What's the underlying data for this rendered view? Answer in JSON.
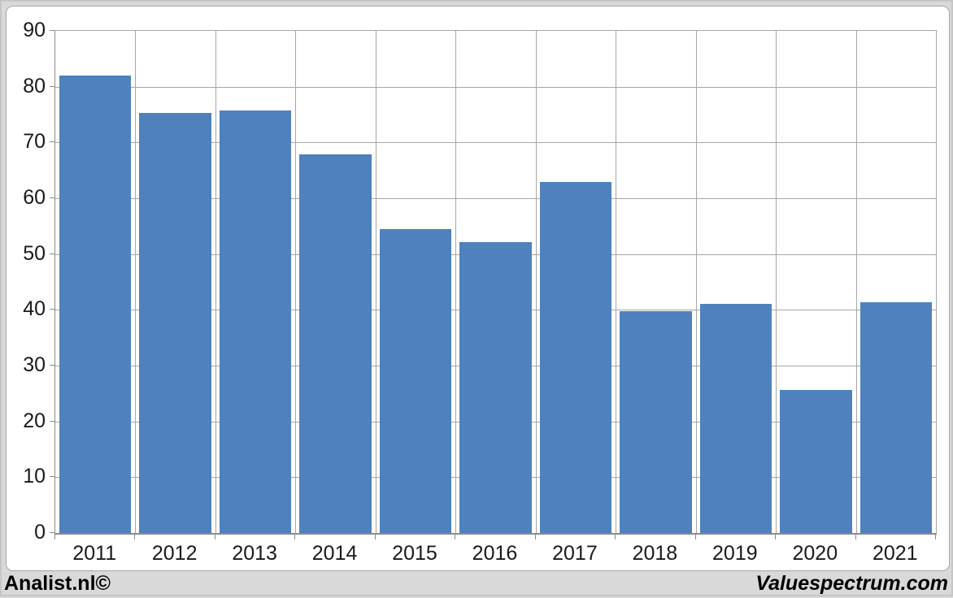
{
  "footer": {
    "left": "Analist.nl©",
    "right": "Valuespectrum.com"
  },
  "colors": {
    "bar": "#4f81bd",
    "gridline": "#a6a6a6",
    "axis": "#8c8c8c",
    "background": "#d9d9d9",
    "panel": "#ffffff",
    "text": "#1a1a1a"
  },
  "chart_data": {
    "type": "bar",
    "categories": [
      "2011",
      "2012",
      "2013",
      "2014",
      "2015",
      "2016",
      "2017",
      "2018",
      "2019",
      "2020",
      "2021"
    ],
    "values": [
      82,
      75.3,
      75.8,
      67.8,
      54.4,
      52.1,
      62.9,
      39.7,
      41,
      25.7,
      41.3
    ],
    "title": "",
    "xlabel": "",
    "ylabel": "",
    "ylim": [
      0,
      90
    ],
    "ytick_step": 10,
    "grid": true,
    "legend_position": "none",
    "bar_color": "#4f81bd"
  }
}
